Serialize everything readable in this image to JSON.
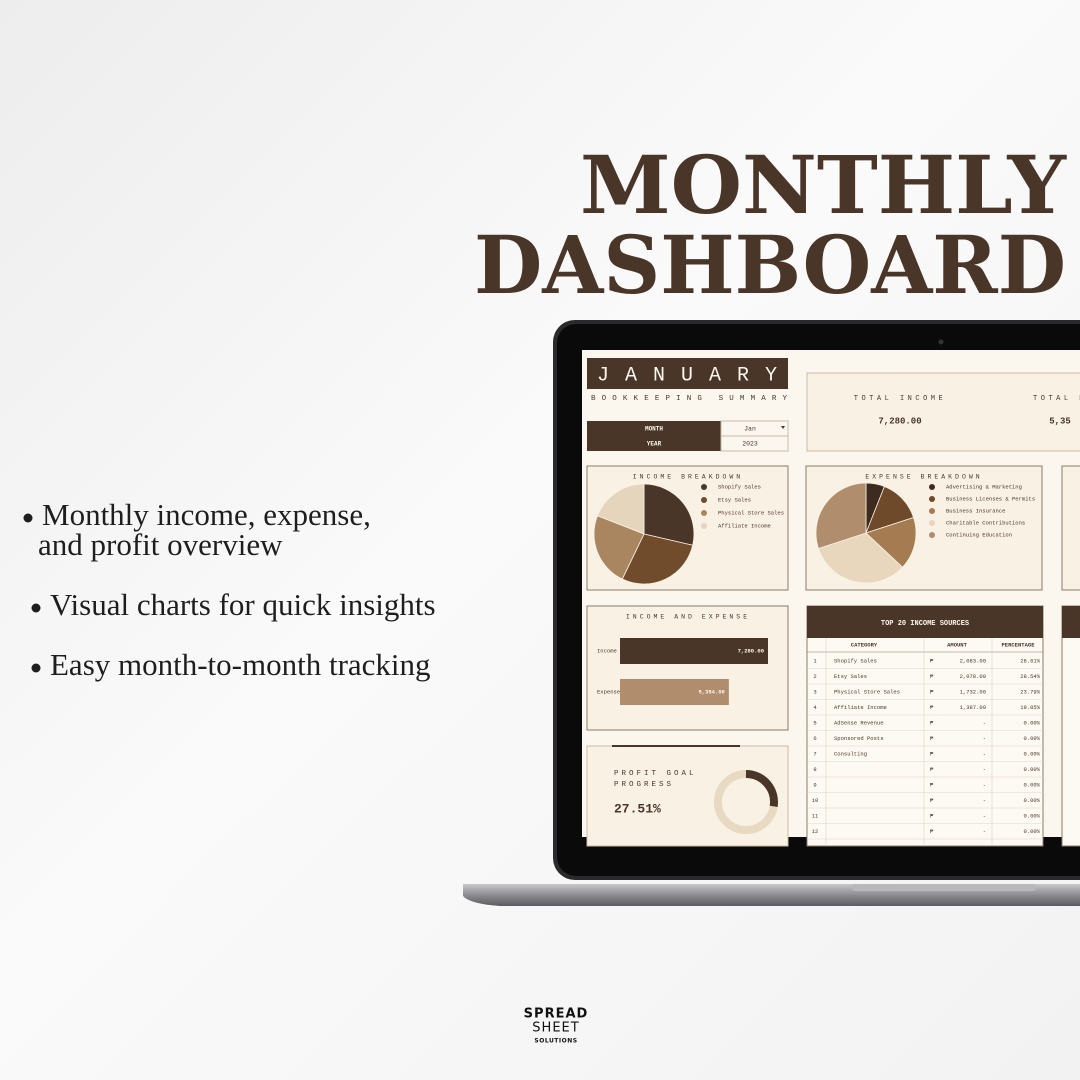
{
  "header": {
    "line1": "MONTHLY",
    "line2": "DASHBOARD"
  },
  "bullets": [
    {
      "lines": [
        "Monthly income, expense,",
        "and profit overview"
      ]
    },
    {
      "lines": [
        "Visual charts for quick insights"
      ]
    },
    {
      "lines": [
        "Easy month-to-month tracking"
      ]
    }
  ],
  "dashboard": {
    "month_title": "JANUARY",
    "subtitle": "BOOKKEEPING SUMMARY",
    "settings": [
      {
        "label": "MONTH",
        "value": "Jan"
      },
      {
        "label": "YEAR",
        "value": "2023"
      }
    ],
    "totals": [
      {
        "label": "TOTAL INCOME",
        "value": "7,280.00"
      },
      {
        "label": "TOTAL E",
        "value": "5,35"
      }
    ],
    "income_breakdown": {
      "type": "pie",
      "title": "INCOME BREAKDOWN",
      "labels": [
        "Shopify Sales",
        "Etsy Sales",
        "Physical Store Sales",
        "Affiliate Income"
      ],
      "values": [
        28.61,
        28.54,
        23.79,
        19.05
      ],
      "colors": [
        "#4a3628",
        "#704c2c",
        "#a98560",
        "#e6d5bd"
      ]
    },
    "expense_breakdown": {
      "type": "pie",
      "title": "EXPENSE BREAKDOWN",
      "labels": [
        "Advertising & Marketing",
        "Business Licenses & Permits",
        "Business Insurance",
        "Charitable Contributions",
        "Continuing Education"
      ],
      "values": [
        6,
        14,
        17,
        33,
        30
      ],
      "colors": [
        "#3d2b1f",
        "#6e4a2a",
        "#a57c52",
        "#e8d6bd",
        "#b08d6c"
      ]
    },
    "income_expense": {
      "type": "bar",
      "title": "INCOME AND EXPENSE",
      "categories": [
        "Income",
        "Expense"
      ],
      "values": [
        7280,
        5354
      ],
      "value_labels": [
        "7,280.00",
        "5,354.00"
      ],
      "colors": [
        "#4a3628",
        "#b08d6c"
      ]
    },
    "profit_goal": {
      "title_lines": [
        "PROFIT GOAL",
        "PROGRESS"
      ],
      "progress": {
        "value": 27.51,
        "label": "27.51%"
      }
    },
    "income_table": {
      "title": "TOP 20 INCOME SOURCES",
      "columns": [
        "CATEGORY",
        "AMOUNT",
        "PERCENTAGE"
      ],
      "rows": [
        [
          "1",
          "Shopify Sales",
          "₱",
          "2,083.00",
          "28.61%"
        ],
        [
          "2",
          "Etsy Sales",
          "₱",
          "2,078.00",
          "28.54%"
        ],
        [
          "3",
          "Physical Store Sales",
          "₱",
          "1,732.00",
          "23.79%"
        ],
        [
          "4",
          "Affiliate Income",
          "₱",
          "1,387.00",
          "19.05%"
        ],
        [
          "5",
          "AdSense Revenue",
          "₱",
          "-",
          "0.00%"
        ],
        [
          "6",
          "Sponsored Posts",
          "₱",
          "-",
          "0.00%"
        ],
        [
          "7",
          "Consulting",
          "₱",
          "-",
          "0.00%"
        ],
        [
          "8",
          null,
          "₱",
          "-",
          "0.00%"
        ],
        [
          "9",
          null,
          "₱",
          "-",
          "0.00%"
        ],
        [
          "10",
          null,
          "₱",
          "-",
          "0.00%"
        ],
        [
          "11",
          null,
          "₱",
          "-",
          "0.00%"
        ],
        [
          "12",
          null,
          "₱",
          "-",
          "0.00%"
        ]
      ]
    }
  },
  "brand": {
    "line1": "SPREAD",
    "line2": "SHEET",
    "line3": "SOLUTIONS"
  }
}
